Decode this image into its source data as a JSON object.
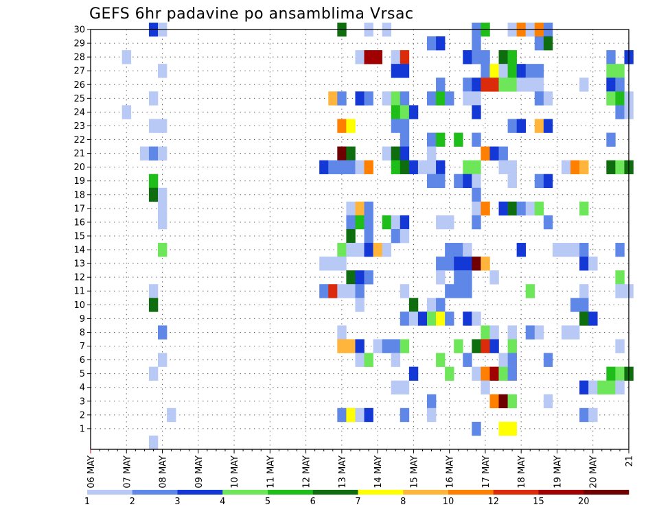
{
  "chart_data": {
    "type": "heatmap",
    "title": "GEFS 6hr padavine po ansamblima Vrsac",
    "xlabel": "",
    "ylabel": "",
    "x_tick_labels": [
      "06 MAY",
      "07 MAY",
      "08 MAY",
      "09 MAY",
      "10 MAY",
      "11 MAY",
      "12 MAY",
      "13 MAY",
      "14 MAY",
      "15 MAY",
      "16 MAY",
      "17 MAY",
      "18 MAY",
      "19 MAY",
      "20 MAY",
      "21"
    ],
    "y_tick_labels": [
      "1",
      "2",
      "3",
      "4",
      "5",
      "6",
      "7",
      "8",
      "9",
      "10",
      "11",
      "12",
      "13",
      "14",
      "15",
      "16",
      "17",
      "18",
      "19",
      "20",
      "21",
      "22",
      "23",
      "24",
      "25",
      "26",
      "27",
      "28",
      "29",
      "30"
    ],
    "time_steps_per_day": 4,
    "num_time_steps": 61,
    "members": 30,
    "grid": true,
    "legend": {
      "position": "bottom",
      "labels": [
        "1",
        "2",
        "3",
        "4",
        "5",
        "6",
        "7",
        "8",
        "10",
        "12",
        "15",
        "20"
      ],
      "colors": [
        "#b9c9f5",
        "#5f87e8",
        "#1438d6",
        "#6ee659",
        "#1fbd1a",
        "#0e6d0e",
        "#ffff00",
        "#ffb43c",
        "#ff7f00",
        "#dc2b0a",
        "#a00000",
        "#6e0000"
      ]
    },
    "cells": [
      [
        30,
        7,
        2
      ],
      [
        30,
        8,
        0
      ],
      [
        30,
        28,
        5
      ],
      [
        30,
        31,
        0
      ],
      [
        30,
        33,
        0
      ],
      [
        30,
        43,
        1
      ],
      [
        30,
        44,
        4
      ],
      [
        30,
        47,
        0
      ],
      [
        30,
        48,
        8
      ],
      [
        30,
        49,
        0
      ],
      [
        30,
        50,
        8
      ],
      [
        30,
        51,
        1
      ],
      [
        29,
        38,
        1
      ],
      [
        29,
        39,
        2
      ],
      [
        29,
        43,
        1
      ],
      [
        29,
        50,
        1
      ],
      [
        29,
        51,
        5
      ],
      [
        28,
        4,
        0
      ],
      [
        28,
        30,
        0
      ],
      [
        28,
        31,
        10
      ],
      [
        28,
        32,
        10
      ],
      [
        28,
        34,
        0
      ],
      [
        28,
        35,
        9
      ],
      [
        28,
        42,
        2
      ],
      [
        28,
        43,
        1
      ],
      [
        28,
        44,
        1
      ],
      [
        28,
        46,
        5
      ],
      [
        28,
        47,
        4
      ],
      [
        28,
        58,
        1
      ],
      [
        28,
        60,
        2
      ],
      [
        27,
        8,
        0
      ],
      [
        27,
        34,
        2
      ],
      [
        27,
        35,
        2
      ],
      [
        27,
        44,
        1
      ],
      [
        27,
        45,
        6
      ],
      [
        27,
        46,
        0
      ],
      [
        27,
        47,
        4
      ],
      [
        27,
        48,
        2
      ],
      [
        27,
        49,
        1
      ],
      [
        27,
        50,
        1
      ],
      [
        27,
        58,
        3
      ],
      [
        27,
        59,
        3
      ],
      [
        26,
        39,
        1
      ],
      [
        26,
        42,
        1
      ],
      [
        26,
        43,
        2
      ],
      [
        26,
        44,
        9
      ],
      [
        26,
        45,
        9
      ],
      [
        26,
        46,
        3
      ],
      [
        26,
        47,
        3
      ],
      [
        26,
        48,
        0
      ],
      [
        26,
        49,
        0
      ],
      [
        26,
        50,
        0
      ],
      [
        26,
        55,
        0
      ],
      [
        26,
        58,
        2
      ],
      [
        26,
        59,
        1
      ],
      [
        25,
        7,
        0
      ],
      [
        25,
        27,
        7
      ],
      [
        25,
        28,
        1
      ],
      [
        25,
        30,
        2
      ],
      [
        25,
        31,
        1
      ],
      [
        25,
        33,
        0
      ],
      [
        25,
        34,
        3
      ],
      [
        25,
        35,
        1
      ],
      [
        25,
        38,
        1
      ],
      [
        25,
        39,
        4
      ],
      [
        25,
        40,
        1
      ],
      [
        25,
        42,
        0
      ],
      [
        25,
        43,
        0
      ],
      [
        25,
        50,
        1
      ],
      [
        25,
        51,
        0
      ],
      [
        25,
        58,
        3
      ],
      [
        25,
        59,
        4
      ],
      [
        25,
        60,
        0
      ],
      [
        24,
        4,
        0
      ],
      [
        24,
        34,
        4
      ],
      [
        24,
        35,
        3
      ],
      [
        24,
        36,
        2
      ],
      [
        24,
        43,
        2
      ],
      [
        24,
        59,
        1
      ],
      [
        24,
        60,
        0
      ],
      [
        23,
        7,
        0
      ],
      [
        23,
        8,
        0
      ],
      [
        23,
        28,
        8
      ],
      [
        23,
        29,
        6
      ],
      [
        23,
        34,
        1
      ],
      [
        23,
        35,
        1
      ],
      [
        23,
        47,
        1
      ],
      [
        23,
        48,
        2
      ],
      [
        23,
        50,
        7
      ],
      [
        23,
        51,
        2
      ],
      [
        22,
        35,
        1
      ],
      [
        22,
        38,
        1
      ],
      [
        22,
        39,
        4
      ],
      [
        22,
        41,
        4
      ],
      [
        22,
        43,
        1
      ],
      [
        22,
        58,
        1
      ],
      [
        21,
        6,
        0
      ],
      [
        21,
        7,
        1
      ],
      [
        21,
        8,
        0
      ],
      [
        21,
        28,
        11
      ],
      [
        21,
        29,
        5
      ],
      [
        21,
        33,
        0
      ],
      [
        21,
        34,
        5
      ],
      [
        21,
        35,
        2
      ],
      [
        21,
        38,
        0
      ],
      [
        21,
        44,
        8
      ],
      [
        21,
        45,
        2
      ],
      [
        21,
        46,
        1
      ],
      [
        20,
        26,
        2
      ],
      [
        20,
        27,
        1
      ],
      [
        20,
        28,
        1
      ],
      [
        20,
        29,
        1
      ],
      [
        20,
        30,
        0
      ],
      [
        20,
        31,
        8
      ],
      [
        20,
        34,
        4
      ],
      [
        20,
        35,
        5
      ],
      [
        20,
        36,
        2
      ],
      [
        20,
        37,
        0
      ],
      [
        20,
        38,
        0
      ],
      [
        20,
        39,
        2
      ],
      [
        20,
        42,
        3
      ],
      [
        20,
        43,
        3
      ],
      [
        20,
        46,
        0
      ],
      [
        20,
        47,
        0
      ],
      [
        20,
        53,
        0
      ],
      [
        20,
        54,
        8
      ],
      [
        20,
        55,
        7
      ],
      [
        20,
        58,
        5
      ],
      [
        20,
        59,
        3
      ],
      [
        20,
        60,
        5
      ],
      [
        19,
        7,
        4
      ],
      [
        19,
        38,
        1
      ],
      [
        19,
        39,
        1
      ],
      [
        19,
        41,
        1
      ],
      [
        19,
        42,
        2
      ],
      [
        19,
        43,
        0
      ],
      [
        19,
        47,
        0
      ],
      [
        19,
        50,
        1
      ],
      [
        19,
        51,
        2
      ],
      [
        18,
        7,
        5
      ],
      [
        18,
        8,
        0
      ],
      [
        18,
        43,
        1
      ],
      [
        17,
        8,
        0
      ],
      [
        17,
        29,
        0
      ],
      [
        17,
        30,
        7
      ],
      [
        17,
        31,
        1
      ],
      [
        17,
        43,
        0
      ],
      [
        17,
        44,
        8
      ],
      [
        17,
        46,
        2
      ],
      [
        17,
        47,
        5
      ],
      [
        17,
        48,
        1
      ],
      [
        17,
        49,
        0
      ],
      [
        17,
        50,
        3
      ],
      [
        17,
        55,
        3
      ],
      [
        16,
        8,
        0
      ],
      [
        16,
        29,
        1
      ],
      [
        16,
        30,
        4
      ],
      [
        16,
        31,
        1
      ],
      [
        16,
        33,
        4
      ],
      [
        16,
        34,
        0
      ],
      [
        16,
        35,
        2
      ],
      [
        16,
        39,
        0
      ],
      [
        16,
        40,
        0
      ],
      [
        16,
        43,
        1
      ],
      [
        16,
        51,
        1
      ],
      [
        15,
        29,
        5
      ],
      [
        15,
        31,
        1
      ],
      [
        15,
        34,
        1
      ],
      [
        15,
        35,
        0
      ],
      [
        14,
        8,
        3
      ],
      [
        14,
        28,
        3
      ],
      [
        14,
        29,
        0
      ],
      [
        14,
        30,
        0
      ],
      [
        14,
        31,
        2
      ],
      [
        14,
        32,
        7
      ],
      [
        14,
        33,
        0
      ],
      [
        14,
        40,
        1
      ],
      [
        14,
        41,
        1
      ],
      [
        14,
        42,
        0
      ],
      [
        14,
        48,
        2
      ],
      [
        14,
        52,
        0
      ],
      [
        14,
        53,
        0
      ],
      [
        14,
        54,
        0
      ],
      [
        14,
        55,
        1
      ],
      [
        14,
        59,
        1
      ],
      [
        13,
        26,
        0
      ],
      [
        13,
        27,
        0
      ],
      [
        13,
        28,
        0
      ],
      [
        13,
        39,
        1
      ],
      [
        13,
        40,
        1
      ],
      [
        13,
        41,
        2
      ],
      [
        13,
        42,
        2
      ],
      [
        13,
        43,
        11
      ],
      [
        13,
        44,
        7
      ],
      [
        13,
        55,
        2
      ],
      [
        13,
        56,
        0
      ],
      [
        12,
        29,
        5
      ],
      [
        12,
        30,
        2
      ],
      [
        12,
        31,
        1
      ],
      [
        12,
        39,
        0
      ],
      [
        12,
        41,
        1
      ],
      [
        12,
        42,
        1
      ],
      [
        12,
        45,
        0
      ],
      [
        12,
        59,
        3
      ],
      [
        11,
        7,
        0
      ],
      [
        11,
        26,
        1
      ],
      [
        11,
        27,
        9
      ],
      [
        11,
        28,
        0
      ],
      [
        11,
        29,
        0
      ],
      [
        11,
        30,
        1
      ],
      [
        11,
        35,
        0
      ],
      [
        11,
        40,
        1
      ],
      [
        11,
        41,
        1
      ],
      [
        11,
        42,
        1
      ],
      [
        11,
        49,
        3
      ],
      [
        11,
        55,
        0
      ],
      [
        11,
        59,
        0
      ],
      [
        11,
        60,
        0
      ],
      [
        10,
        7,
        5
      ],
      [
        10,
        30,
        0
      ],
      [
        10,
        36,
        5
      ],
      [
        10,
        38,
        0
      ],
      [
        10,
        39,
        1
      ],
      [
        10,
        54,
        1
      ],
      [
        10,
        55,
        1
      ],
      [
        9,
        35,
        1
      ],
      [
        9,
        36,
        0
      ],
      [
        9,
        37,
        2
      ],
      [
        9,
        38,
        3
      ],
      [
        9,
        39,
        6
      ],
      [
        9,
        40,
        1
      ],
      [
        9,
        42,
        2
      ],
      [
        9,
        43,
        0
      ],
      [
        9,
        55,
        5
      ],
      [
        9,
        56,
        2
      ],
      [
        8,
        8,
        1
      ],
      [
        8,
        28,
        0
      ],
      [
        8,
        44,
        3
      ],
      [
        8,
        45,
        0
      ],
      [
        8,
        47,
        0
      ],
      [
        8,
        49,
        1
      ],
      [
        8,
        50,
        0
      ],
      [
        8,
        53,
        0
      ],
      [
        8,
        54,
        0
      ],
      [
        7,
        28,
        7
      ],
      [
        7,
        29,
        7
      ],
      [
        7,
        30,
        2
      ],
      [
        7,
        32,
        0
      ],
      [
        7,
        33,
        1
      ],
      [
        7,
        34,
        1
      ],
      [
        7,
        35,
        3
      ],
      [
        7,
        41,
        3
      ],
      [
        7,
        43,
        5
      ],
      [
        7,
        44,
        9
      ],
      [
        7,
        45,
        2
      ],
      [
        7,
        47,
        3
      ],
      [
        7,
        59,
        0
      ],
      [
        6,
        8,
        0
      ],
      [
        6,
        30,
        0
      ],
      [
        6,
        31,
        3
      ],
      [
        6,
        34,
        0
      ],
      [
        6,
        39,
        3
      ],
      [
        6,
        42,
        1
      ],
      [
        6,
        46,
        0
      ],
      [
        6,
        47,
        1
      ],
      [
        6,
        51,
        1
      ],
      [
        5,
        7,
        0
      ],
      [
        5,
        36,
        2
      ],
      [
        5,
        40,
        3
      ],
      [
        5,
        43,
        0
      ],
      [
        5,
        44,
        8
      ],
      [
        5,
        45,
        10
      ],
      [
        5,
        46,
        3
      ],
      [
        5,
        47,
        1
      ],
      [
        5,
        58,
        4
      ],
      [
        5,
        59,
        3
      ],
      [
        5,
        60,
        5
      ],
      [
        4,
        34,
        0
      ],
      [
        4,
        35,
        0
      ],
      [
        4,
        44,
        0
      ],
      [
        4,
        55,
        2
      ],
      [
        4,
        56,
        0
      ],
      [
        4,
        57,
        3
      ],
      [
        4,
        58,
        3
      ],
      [
        4,
        59,
        0
      ],
      [
        3,
        38,
        1
      ],
      [
        3,
        45,
        8
      ],
      [
        3,
        46,
        11
      ],
      [
        3,
        47,
        3
      ],
      [
        3,
        51,
        0
      ],
      [
        2,
        9,
        0
      ],
      [
        2,
        28,
        1
      ],
      [
        2,
        29,
        6
      ],
      [
        2,
        30,
        0
      ],
      [
        2,
        31,
        2
      ],
      [
        2,
        35,
        1
      ],
      [
        2,
        38,
        0
      ],
      [
        2,
        55,
        1
      ],
      [
        2,
        56,
        0
      ],
      [
        1,
        43,
        1
      ],
      [
        1,
        46,
        6
      ],
      [
        1,
        47,
        6
      ],
      [
        0,
        7,
        0
      ]
    ]
  }
}
